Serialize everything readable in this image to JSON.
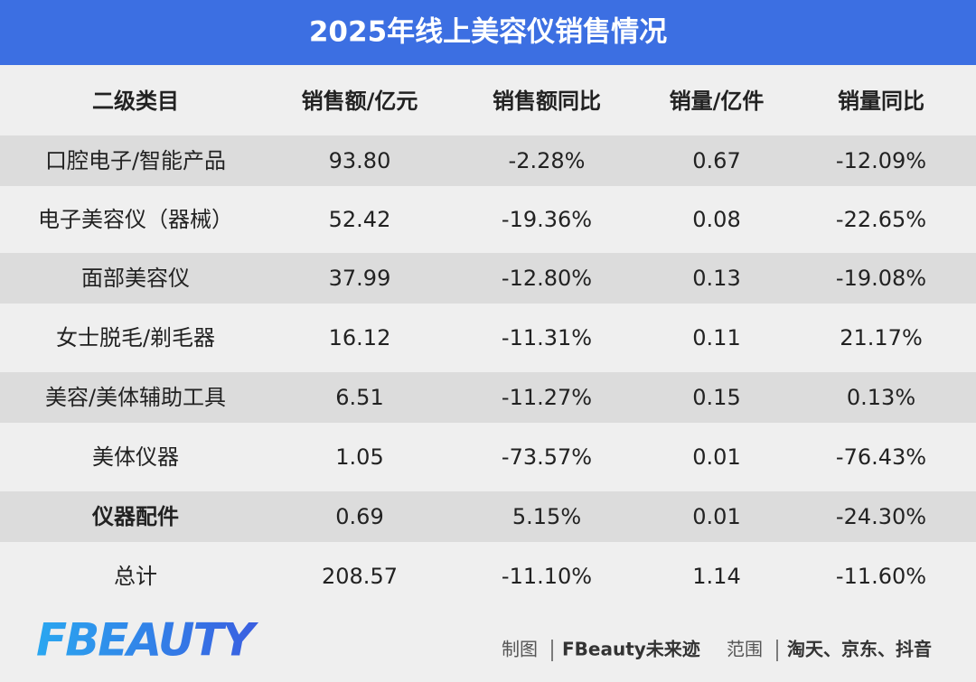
{
  "header": {
    "title": "2025年线上美容仪销售情况"
  },
  "table": {
    "columns": [
      "二级类目",
      "销售额/亿元",
      "销售额同比",
      "销量/亿件",
      "销量同比"
    ],
    "rows": [
      [
        "口腔电子/智能产品",
        "93.80",
        "-2.28%",
        "0.67",
        "-12.09%"
      ],
      [
        "电子美容仪（器械）",
        "52.42",
        "-19.36%",
        "0.08",
        "-22.65%"
      ],
      [
        "面部美容仪",
        "37.99",
        "-12.80%",
        "0.13",
        "-19.08%"
      ],
      [
        "女士脱毛/剃毛器",
        "16.12",
        "-11.31%",
        "0.11",
        "21.17%"
      ],
      [
        "美容/美体辅助工具",
        "6.51",
        "-11.27%",
        "0.15",
        "0.13%"
      ],
      [
        "美体仪器",
        "1.05",
        "-73.57%",
        "0.01",
        "-76.43%"
      ],
      [
        "仪器配件",
        "0.69",
        "5.15%",
        "0.01",
        "-24.30%"
      ],
      [
        "总计",
        "208.57",
        "-11.10%",
        "1.14",
        "-11.60%"
      ]
    ]
  },
  "footer": {
    "logo": "FBEAUTY",
    "credit_label": "制图",
    "credit": "FBeauty未来迹",
    "scope_label": "范围",
    "scope": "淘天、京东、抖音"
  }
}
